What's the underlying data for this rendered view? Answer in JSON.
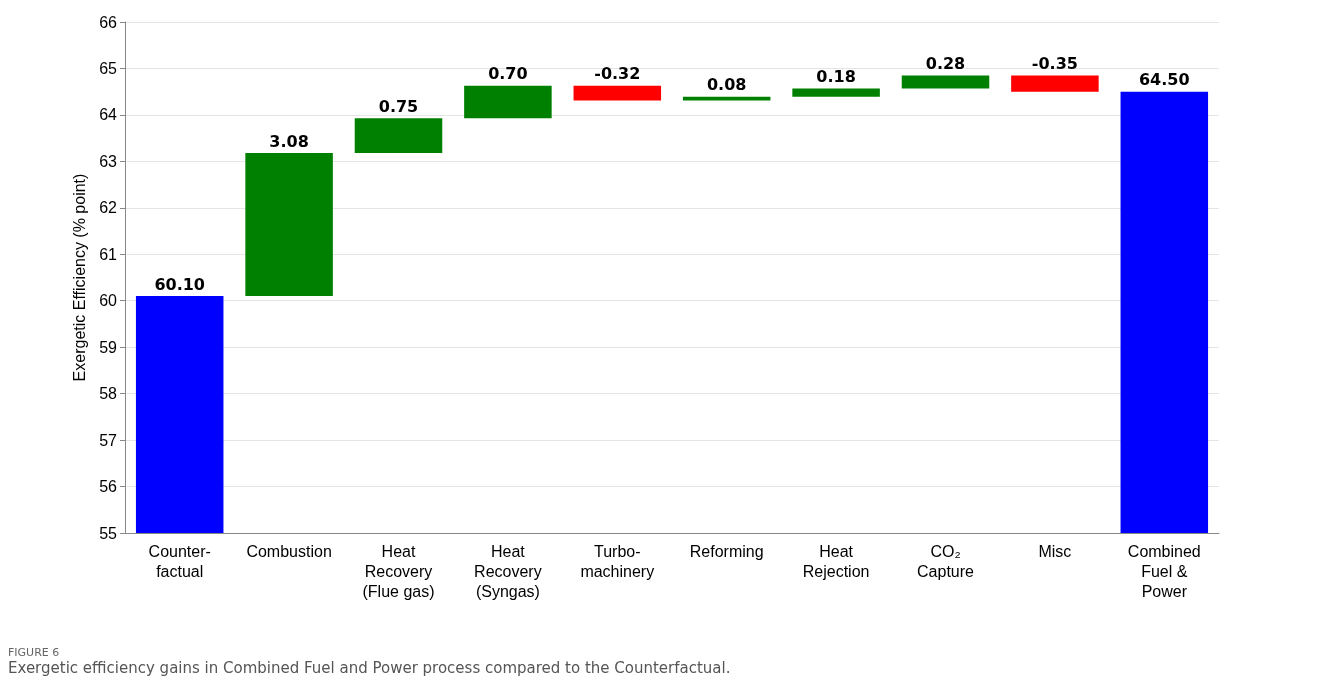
{
  "chart_data": {
    "type": "bar",
    "ylabel": "Exergetic Efficiency (% point)",
    "categories": [
      "Counter-\nfactual",
      "Combustion",
      "Heat\nRecovery\n(Flue gas)",
      "Heat\nRecovery\n(Syngas)",
      "Turbo-\nmachinery",
      "Reforming",
      "Heat\nRejection",
      "CO₂\nCapture",
      "Misc",
      "Combined\nFuel &\nPower"
    ],
    "values": [
      60.1,
      3.08,
      0.75,
      0.7,
      -0.32,
      0.08,
      0.18,
      0.28,
      -0.35,
      64.5
    ],
    "base": [
      null,
      60.1,
      63.18,
      63.93,
      64.63,
      64.31,
      64.39,
      64.57,
      64.85,
      null
    ],
    "colors": [
      "#0000ff",
      "#008000",
      "#008000",
      "#008000",
      "#ff0000",
      "#008000",
      "#008000",
      "#008000",
      "#ff0000",
      "#0000ff"
    ],
    "value_labels": [
      "60.10",
      "3.08",
      "0.75",
      "0.70",
      "-0.32",
      "0.08",
      "0.18",
      "0.28",
      "-0.35",
      "64.50"
    ],
    "ylim": [
      55,
      66
    ],
    "yticks": [
      55,
      56,
      57,
      58,
      59,
      60,
      61,
      62,
      63,
      64,
      65,
      66
    ],
    "grid": "y",
    "annotations": [
      "FIGURE 6",
      "Exergetic efficiency gains in Combined Fuel and Power process compared to the Counterfactual."
    ]
  }
}
